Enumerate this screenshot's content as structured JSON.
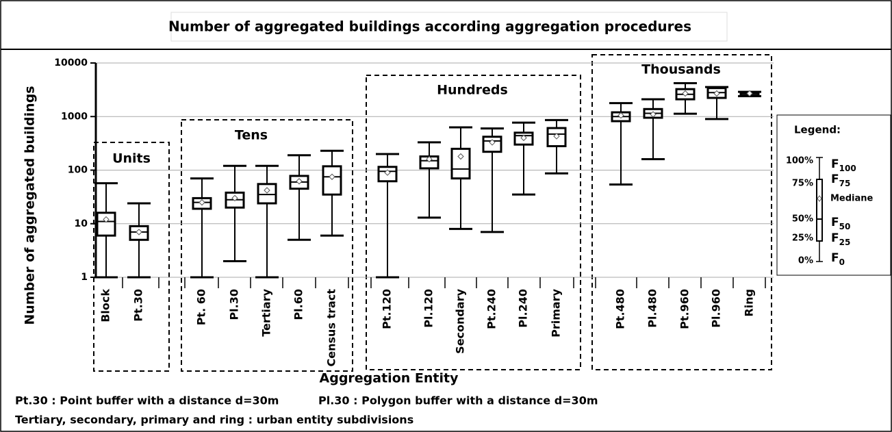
{
  "chart_data": {
    "type": "box",
    "title": "Number of aggregated buildings  according aggregation procedures",
    "y_label": "Number of aggregated buildings",
    "x_label": "Aggregation Entity",
    "log_scale": true,
    "grid": true,
    "ylim": [
      1,
      10000
    ],
    "yticks": [
      1,
      10,
      100,
      1000,
      10000
    ],
    "groups": [
      "Units",
      "Tens",
      "Hundreds",
      "Thousands"
    ],
    "categories": [
      "Block",
      "Pt.30",
      "Pt. 60",
      "Pl.30",
      "Tertiary",
      "Pl.60",
      "Census tract",
      "Pt.120",
      "Pl.120",
      "Secondary",
      "Pt.240",
      "Pl.240",
      "Primary",
      "Pt.480",
      "Pl.480",
      "Pt.960",
      "Pl.960",
      "Ring"
    ],
    "stats": [
      {
        "min": 1,
        "q1": 6,
        "median": 11,
        "q3": 16,
        "max": 57,
        "mean": 12
      },
      {
        "min": 1,
        "q1": 5,
        "median": 7,
        "q3": 9,
        "max": 24,
        "mean": 7
      },
      {
        "min": 1,
        "q1": 19,
        "median": 25,
        "q3": 30,
        "max": 70,
        "mean": 25
      },
      {
        "min": 2,
        "q1": 20,
        "median": 28,
        "q3": 38,
        "max": 120,
        "mean": 30
      },
      {
        "min": 1,
        "q1": 24,
        "median": 35,
        "q3": 55,
        "max": 120,
        "mean": 42
      },
      {
        "min": 5,
        "q1": 45,
        "median": 60,
        "q3": 78,
        "max": 190,
        "mean": 62
      },
      {
        "min": 6,
        "q1": 35,
        "median": 75,
        "q3": 118,
        "max": 230,
        "mean": 75
      },
      {
        "min": 1,
        "q1": 62,
        "median": 95,
        "q3": 115,
        "max": 200,
        "mean": 90
      },
      {
        "min": 13,
        "q1": 108,
        "median": 150,
        "q3": 180,
        "max": 330,
        "mean": 160
      },
      {
        "min": 8,
        "q1": 70,
        "median": 105,
        "q3": 250,
        "max": 630,
        "mean": 180
      },
      {
        "min": 7,
        "q1": 220,
        "median": 350,
        "q3": 420,
        "max": 600,
        "mean": 330
      },
      {
        "min": 35,
        "q1": 300,
        "median": 440,
        "q3": 500,
        "max": 770,
        "mean": 400
      },
      {
        "min": 87,
        "q1": 280,
        "median": 470,
        "q3": 610,
        "max": 860,
        "mean": 430
      },
      {
        "min": 54,
        "q1": 820,
        "median": 1000,
        "q3": 1200,
        "max": 1780,
        "mean": 1050
      },
      {
        "min": 160,
        "q1": 950,
        "median": 1150,
        "q3": 1380,
        "max": 2100,
        "mean": 1100
      },
      {
        "min": 1130,
        "q1": 2100,
        "median": 2600,
        "q3": 3250,
        "max": 4200,
        "mean": 2700
      },
      {
        "min": 900,
        "q1": 2230,
        "median": 2800,
        "q3": 3400,
        "max": 3560,
        "mean": 2700
      },
      {
        "min": 2400,
        "q1": 2500,
        "median": 2700,
        "q3": 2800,
        "max": 2900,
        "mean": 2700
      }
    ],
    "legend": {
      "title": "Legend:",
      "percent_labels": [
        "100%",
        "75%",
        "50%",
        "25%",
        "0%"
      ],
      "f_labels": [
        {
          "symbol": "F",
          "subscript": "100"
        },
        {
          "symbol": "F",
          "subscript": "75"
        },
        {
          "symbol": "F",
          "subscript": "50"
        },
        {
          "symbol": "F",
          "subscript": "25"
        },
        {
          "symbol": "F",
          "subscript": "0"
        }
      ],
      "mean_label": "Mediane"
    },
    "footnotes": [
      "Pt.30 : Point buffer  with a distance d=30m",
      "Pl.30 : Polygon buffer  with a distance d=30m",
      "Tertiary, secondary, primary and ring : urban entity subdivisions"
    ]
  }
}
